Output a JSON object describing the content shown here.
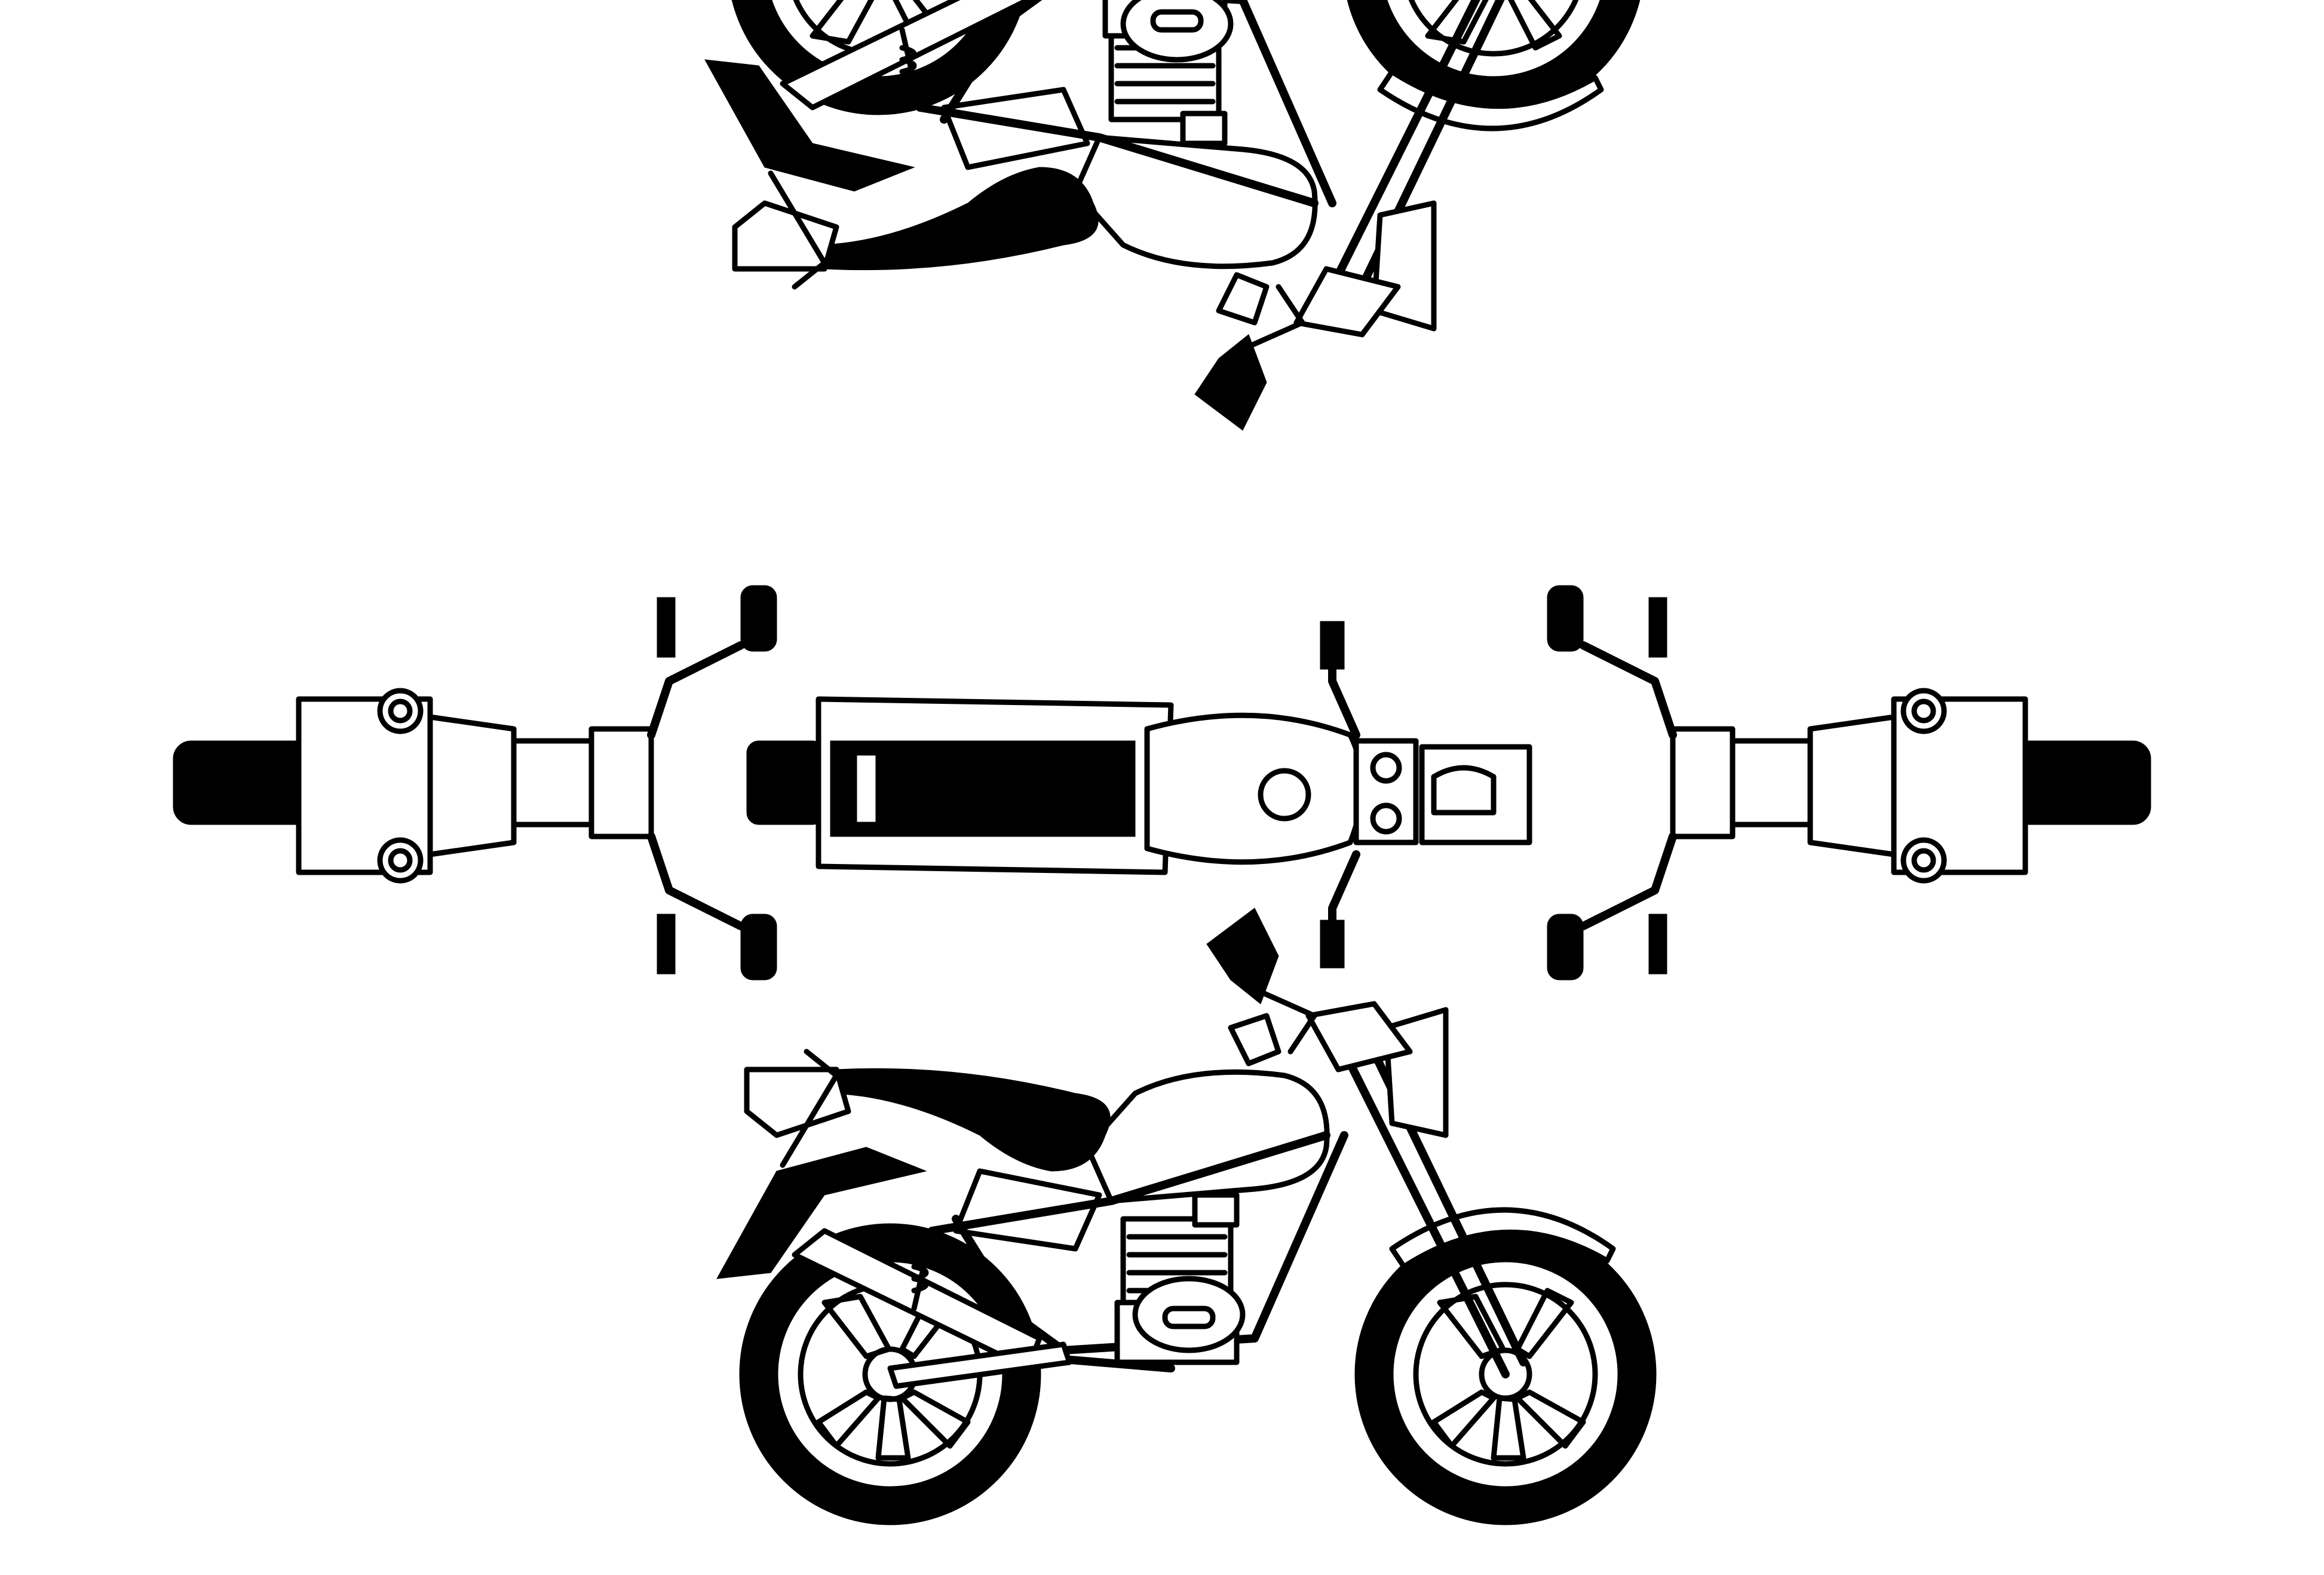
{
  "colors": {
    "ink": "#000000",
    "paper": "#ffffff"
  },
  "views": [
    {
      "name": "side-view-left",
      "orientation": "upside-down"
    },
    {
      "name": "rear-view"
    },
    {
      "name": "top-view"
    },
    {
      "name": "front-view"
    },
    {
      "name": "side-view-left",
      "orientation": "upright"
    }
  ]
}
